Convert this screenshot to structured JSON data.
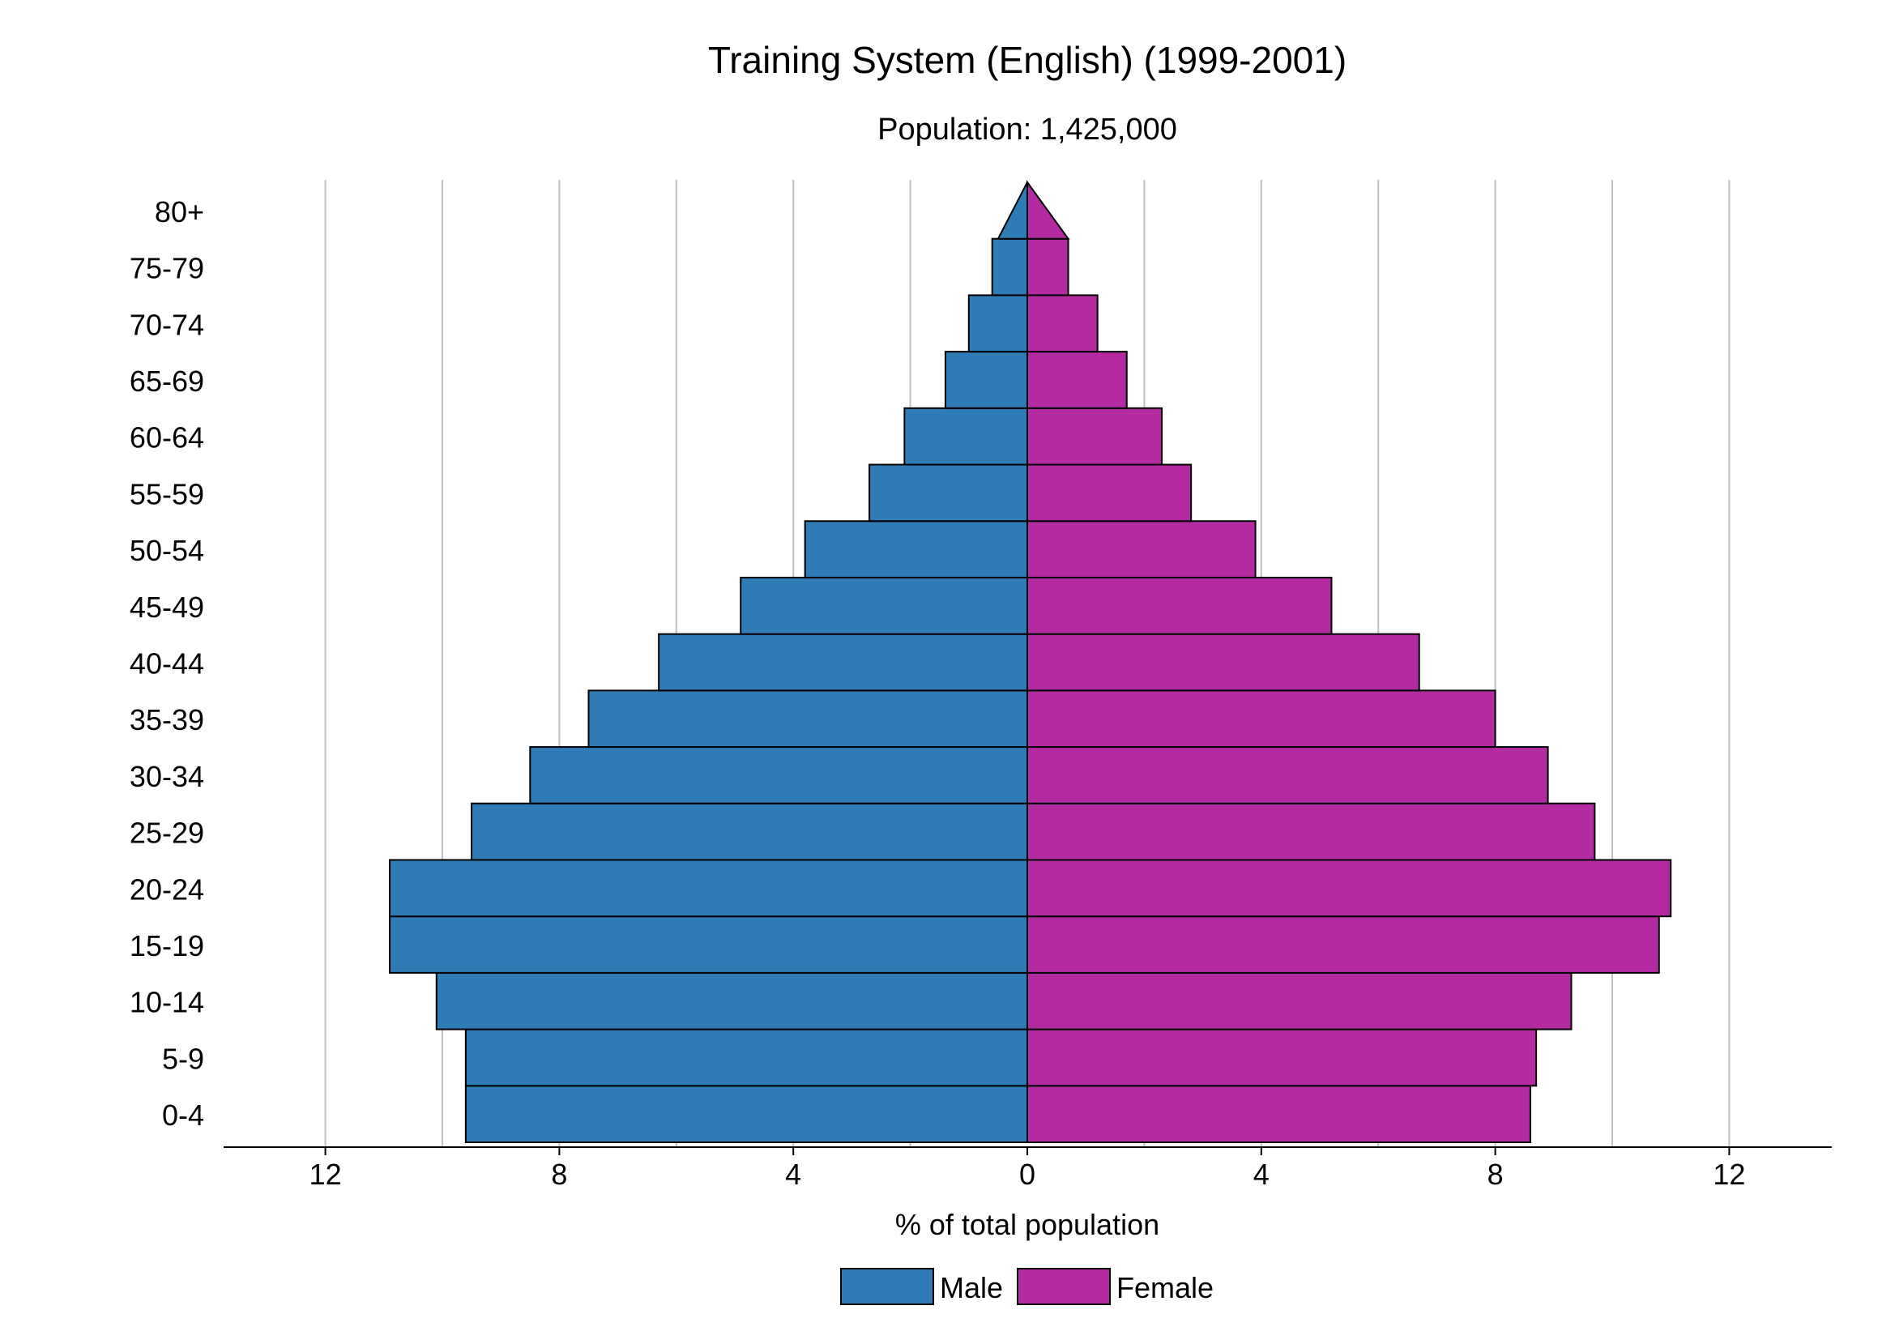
{
  "chart_data": {
    "type": "bar",
    "orientation": "horizontal",
    "title": "Training System (English) (1999-2001)",
    "subtitle": "Population: 1,425,000",
    "xlabel": "% of total population",
    "ylabel": "",
    "xlim": [
      -12,
      12
    ],
    "x_ticks": [
      -12,
      -8,
      -4,
      0,
      4,
      8,
      12
    ],
    "x_tick_labels": [
      "12",
      "8",
      "4",
      "0",
      "4",
      "8",
      "12"
    ],
    "grid": "vertical",
    "legend_position": "bottom",
    "categories": [
      "0-4",
      "5-9",
      "10-14",
      "15-19",
      "20-24",
      "25-29",
      "30-34",
      "35-39",
      "40-44",
      "45-49",
      "50-54",
      "55-59",
      "60-64",
      "65-69",
      "70-74",
      "75-79",
      "80+"
    ],
    "series": [
      {
        "name": "Male",
        "color": "#2e7bb6",
        "values": [
          9.6,
          9.6,
          10.1,
          10.9,
          10.9,
          9.5,
          8.5,
          7.5,
          6.3,
          4.9,
          3.8,
          2.7,
          2.1,
          1.4,
          1.0,
          0.6,
          0.5
        ]
      },
      {
        "name": "Female",
        "color": "#b42aa0",
        "values": [
          8.6,
          8.7,
          9.3,
          10.8,
          11.0,
          9.7,
          8.9,
          8.0,
          6.7,
          5.2,
          3.9,
          2.8,
          2.3,
          1.7,
          1.2,
          0.7,
          0.7
        ]
      }
    ]
  }
}
